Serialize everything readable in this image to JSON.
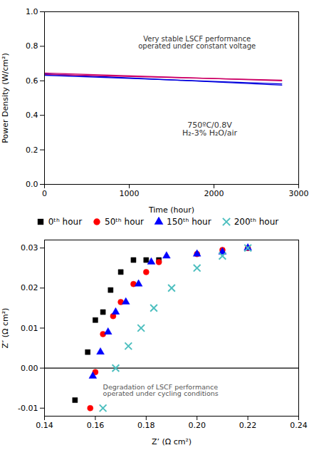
{
  "chart_data": [
    {
      "type": "line",
      "x": [
        0,
        2800
      ],
      "series": [
        {
          "color": "#0000dd",
          "values": [
            0.64,
            0.575
          ]
        },
        {
          "color": "#cc0066",
          "values": [
            0.645,
            0.6
          ]
        },
        {
          "color": "#cc0066",
          "values": [
            0.637,
            0.604
          ]
        },
        {
          "color": "#0000dd",
          "values": [
            0.632,
            0.582
          ]
        }
      ],
      "xlabel": "Time (hour)",
      "ylabel": "Power Density (W/cm²)",
      "annotations": [
        "Very stable LSCF performance\noperated under constant voltage",
        "750ºC/0.8V\nH₂-3% H₂O/air"
      ],
      "xlim": [
        0,
        3000
      ],
      "ylim": [
        0.0,
        1.0
      ],
      "xticks": [
        0,
        1000,
        2000,
        3000
      ],
      "yticks": [
        {
          "value": 0.0,
          "label": "0.0"
        },
        {
          "value": 0.2,
          "label": "0.2"
        },
        {
          "value": 0.4,
          "label": "0.4"
        },
        {
          "value": 0.6,
          "label": "0.6"
        },
        {
          "value": 0.8,
          "label": "0.8"
        },
        {
          "value": 1.0,
          "label": "1.0"
        }
      ],
      "grid": false
    },
    {
      "type": "scatter",
      "series": [
        {
          "name": "0ᵗʰ hour",
          "color": "black",
          "marker": "square",
          "x": [
            0.152,
            0.157,
            0.16,
            0.163,
            0.166,
            0.17,
            0.175,
            0.18,
            0.185
          ],
          "values": [
            -0.008,
            0.004,
            0.012,
            0.014,
            0.0195,
            0.024,
            0.027,
            0.027,
            0.027
          ]
        },
        {
          "name": "50ᵗʰ hour",
          "color": "red",
          "marker": "circle",
          "x": [
            0.158,
            0.16,
            0.163,
            0.167,
            0.17,
            0.175,
            0.18,
            0.185,
            0.2,
            0.21,
            0.22
          ],
          "values": [
            -0.01,
            -0.001,
            0.0085,
            0.013,
            0.0165,
            0.021,
            0.024,
            0.0265,
            0.0285,
            0.0295,
            0.03
          ]
        },
        {
          "name": "150ᵗʰ hour",
          "color": "blue",
          "marker": "triangle",
          "x": [
            0.159,
            0.162,
            0.165,
            0.168,
            0.172,
            0.177,
            0.182,
            0.188,
            0.2,
            0.21,
            0.22
          ],
          "values": [
            -0.002,
            0.004,
            0.009,
            0.014,
            0.0165,
            0.021,
            0.0265,
            0.028,
            0.0285,
            0.029,
            0.03
          ]
        },
        {
          "name": "200ᵗʰ hour",
          "color": "#4dbfbf",
          "marker": "x",
          "x": [
            0.163,
            0.168,
            0.173,
            0.178,
            0.183,
            0.19,
            0.2,
            0.21,
            0.22
          ],
          "values": [
            -0.01,
            0.0,
            0.0055,
            0.01,
            0.015,
            0.02,
            0.025,
            0.028,
            0.03
          ]
        }
      ],
      "hline": 0.0,
      "xlabel": "Z’ (Ω cm²)",
      "ylabel": "Z″ (Ω cm²)",
      "annotations": [
        "Degradation of LSCF performance\noperated under cycling conditions"
      ],
      "xlim": [
        0.14,
        0.24
      ],
      "ylim": [
        -0.012,
        0.032
      ],
      "xticks": [
        0.14,
        0.16,
        0.18,
        {
          "value": 0.2,
          "label": "0.20"
        },
        0.22,
        0.24
      ],
      "yticks": [
        -0.01,
        {
          "value": 0.0,
          "label": "0.00"
        },
        0.01,
        0.02,
        0.03
      ],
      "legend": "top",
      "grid": false
    }
  ]
}
